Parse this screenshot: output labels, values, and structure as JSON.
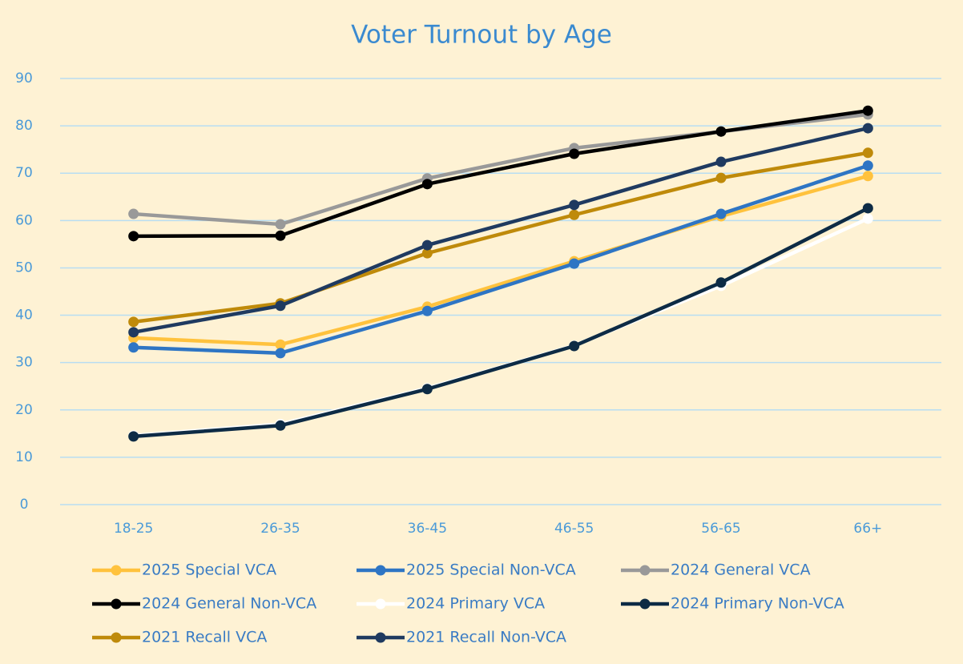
{
  "chart_data": {
    "type": "line",
    "title": "Voter Turnout by Age",
    "categories": [
      "18-25",
      "26-35",
      "36-45",
      "46-55",
      "56-65",
      "66+"
    ],
    "series": [
      {
        "name": "2025 Special VCA",
        "color": "#FFC23D",
        "values": [
          35.2,
          33.8,
          41.8,
          51.4,
          60.9,
          69.4
        ]
      },
      {
        "name": "2025 Special Non-VCA",
        "color": "#2E75C4",
        "values": [
          33.2,
          32.0,
          40.9,
          50.9,
          61.4,
          71.6
        ]
      },
      {
        "name": "2024 General VCA",
        "color": "#999999",
        "values": [
          61.4,
          59.2,
          68.9,
          75.3,
          78.8,
          82.4
        ]
      },
      {
        "name": "2024 General Non-VCA",
        "color": "#000000",
        "values": [
          56.7,
          56.8,
          67.7,
          74.1,
          78.8,
          83.2
        ]
      },
      {
        "name": "2024 Primary VCA",
        "color": "#FFFFFF",
        "values": [
          14.6,
          17.0,
          24.6,
          33.6,
          46.2,
          60.4
        ]
      },
      {
        "name": "2024 Primary Non-VCA",
        "color": "#0D2B45",
        "values": [
          14.4,
          16.7,
          24.4,
          33.5,
          46.9,
          62.6
        ]
      },
      {
        "name": "2021 Recall VCA",
        "color": "#BF8A0A",
        "values": [
          38.6,
          42.5,
          53.1,
          61.2,
          69.0,
          74.3
        ]
      },
      {
        "name": "2021 Recall Non-VCA",
        "color": "#1F3A60",
        "values": [
          36.4,
          42.0,
          54.8,
          63.3,
          72.4,
          79.5
        ]
      }
    ],
    "ylim": [
      0,
      90
    ],
    "yticks": [
      0,
      10,
      20,
      30,
      40,
      50,
      60,
      70,
      80,
      90
    ],
    "grid": true
  }
}
